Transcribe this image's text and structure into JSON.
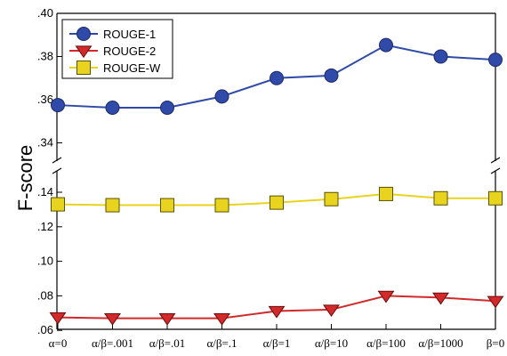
{
  "chart_data": {
    "type": "line",
    "ylabel": "F-score",
    "categories": [
      "α=0",
      "α/β=.001",
      "α/β=.01",
      "α/β=.1",
      "α/β=1",
      "α/β=10",
      "α/β=100",
      "α/β=1000",
      "β=0"
    ],
    "y_axis_break": true,
    "upper_panel": {
      "ylim": [
        0.32,
        0.4
      ],
      "yticks": [
        ".34",
        ".36",
        ".38",
        ".40"
      ]
    },
    "lower_panel": {
      "ylim": [
        0.06,
        0.15
      ],
      "yticks": [
        ".06",
        ".08",
        ".10",
        ".12",
        ".14"
      ]
    },
    "series": [
      {
        "name": "ROUGE-1",
        "panel": "upper",
        "color": "#2f4aa8",
        "marker": "circle",
        "values": [
          0.3575,
          0.3563,
          0.3563,
          0.3615,
          0.37,
          0.3712,
          0.3853,
          0.38,
          0.3785
        ]
      },
      {
        "name": "ROUGE-2",
        "panel": "lower",
        "color": "#d22a2a",
        "marker": "triangle-down",
        "values": [
          0.0675,
          0.067,
          0.067,
          0.067,
          0.0712,
          0.072,
          0.08,
          0.079,
          0.077
        ]
      },
      {
        "name": "ROUGE-W",
        "panel": "lower",
        "color": "#e8d41e",
        "marker": "square",
        "values": [
          0.133,
          0.1325,
          0.1325,
          0.1325,
          0.134,
          0.136,
          0.139,
          0.1365,
          0.1365
        ]
      }
    ],
    "legend_position": "top-left",
    "grid": false
  }
}
